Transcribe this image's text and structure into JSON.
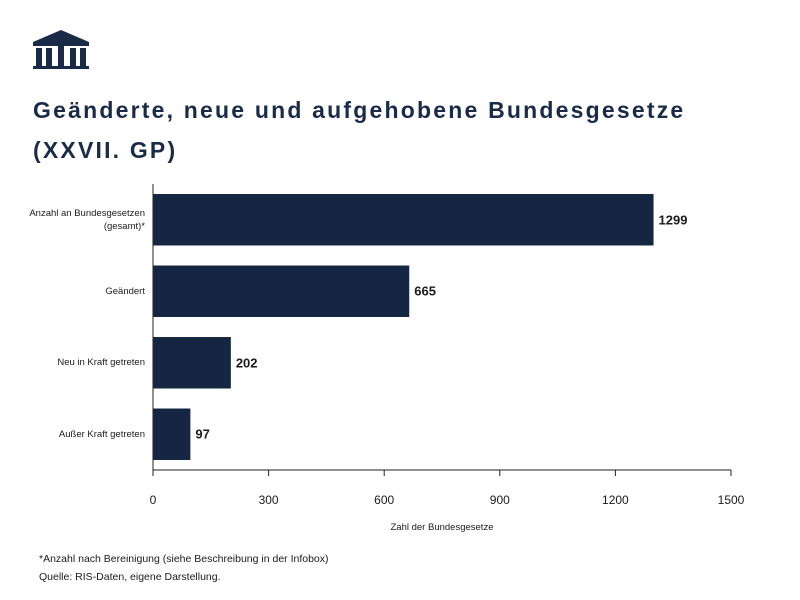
{
  "chart_data": {
    "type": "barh",
    "title": "Geänderte, neue und aufgehobene Bundesgesetze (XXVII. GP)",
    "categories": [
      "Anzahl an Bundesgesetzen (gesamt)*",
      "Geändert",
      "Neu in Kraft getreten",
      "Außer Kraft getreten"
    ],
    "values": [
      1299,
      665,
      202,
      97
    ],
    "color": "#152642",
    "xlim": [
      0,
      1500
    ],
    "xticks": [
      0,
      300,
      600,
      900,
      1200,
      1500
    ],
    "xlabel": "Zahl der Bundesgesetze",
    "grid": false,
    "note": "*Anzahl nach Bereinigung (siehe Beschreibung in der Infobox)",
    "source": "Quelle: RIS-Daten, eigene Darstellung."
  }
}
